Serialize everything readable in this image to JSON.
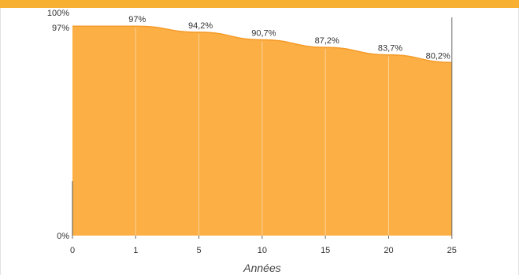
{
  "chart_data": {
    "type": "area",
    "xlabel": "Années",
    "ylabel": "",
    "x": [
      0,
      1,
      5,
      10,
      15,
      20,
      25
    ],
    "values": [
      97,
      97,
      94.2,
      90.7,
      87.2,
      83.7,
      80.2
    ],
    "data_labels": [
      "",
      "97%",
      "94,2%",
      "90,7%",
      "87,2%",
      "83,7%",
      "80,2%"
    ],
    "x_tick_labels": [
      "0",
      "1",
      "5",
      "10",
      "15",
      "20",
      "25"
    ],
    "y_tick_labels": [
      "100%",
      "97%",
      "0%"
    ],
    "y_ticks": [
      100,
      97,
      0
    ],
    "ylim": [
      0,
      100
    ],
    "grid": false,
    "colors": {
      "fill": "#fbaf45",
      "line": "#f59b28",
      "top_band": "#f7b032",
      "divider": "#ffffff"
    }
  }
}
